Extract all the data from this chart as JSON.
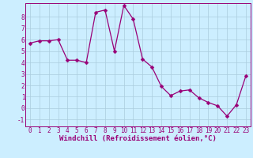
{
  "title": "",
  "xlabel": "Windchill (Refroidissement éolien,°C)",
  "ylabel": "",
  "background_color": "#cceeff",
  "grid_color": "#aaccdd",
  "line_color": "#990077",
  "marker_color": "#990077",
  "xlim": [
    -0.5,
    23.5
  ],
  "ylim": [
    -1.6,
    9.2
  ],
  "xticks": [
    0,
    1,
    2,
    3,
    4,
    5,
    6,
    7,
    8,
    9,
    10,
    11,
    12,
    13,
    14,
    15,
    16,
    17,
    18,
    19,
    20,
    21,
    22,
    23
  ],
  "yticks": [
    -1,
    0,
    1,
    2,
    3,
    4,
    5,
    6,
    7,
    8
  ],
  "x": [
    0,
    1,
    2,
    3,
    4,
    5,
    6,
    7,
    8,
    9,
    10,
    11,
    12,
    13,
    14,
    15,
    16,
    17,
    18,
    19,
    20,
    21,
    22,
    23
  ],
  "y": [
    5.7,
    5.9,
    5.9,
    6.0,
    4.2,
    4.2,
    4.0,
    8.4,
    8.6,
    5.0,
    9.0,
    7.8,
    4.3,
    3.6,
    1.9,
    1.1,
    1.5,
    1.6,
    0.9,
    0.5,
    0.2,
    -0.7,
    0.3,
    2.8
  ],
  "marker_size": 2.5,
  "line_width": 0.9,
  "xlabel_fontsize": 6.5,
  "tick_fontsize": 5.5
}
